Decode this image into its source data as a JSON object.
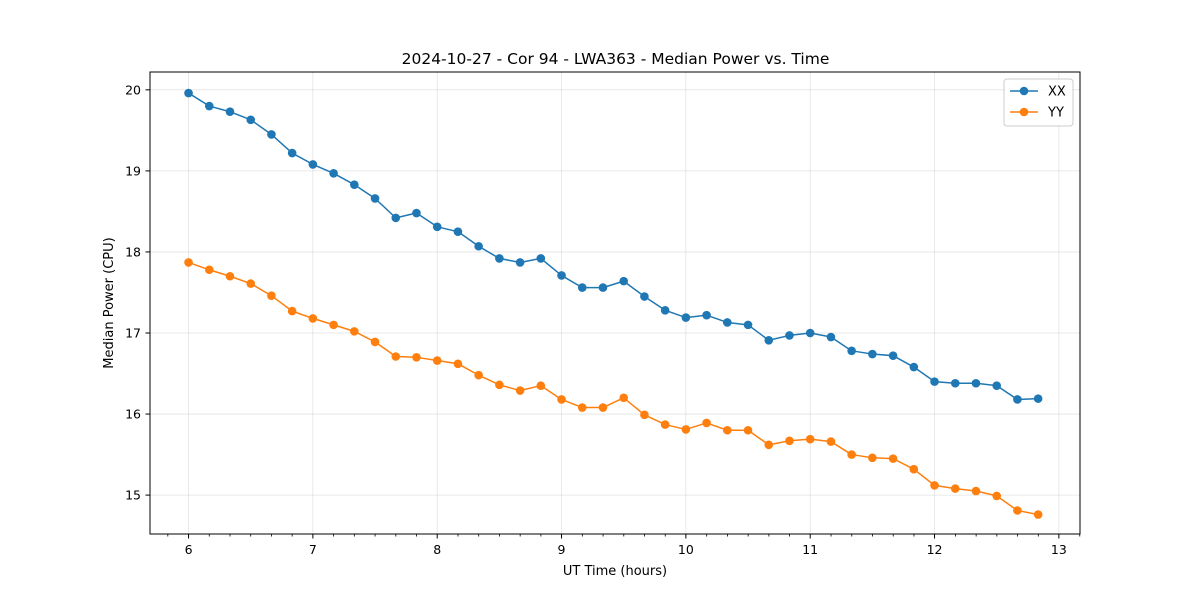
{
  "chart_data": {
    "type": "line",
    "title": "2024-10-27 - Cor 94 - LWA363 - Median Power vs. Time",
    "xlabel": "UT Time (hours)",
    "ylabel": "Median Power (CPU)",
    "xlim": [
      5.69,
      13.17
    ],
    "ylim": [
      14.52,
      20.22
    ],
    "xticks": [
      6,
      7,
      8,
      9,
      10,
      11,
      12,
      13
    ],
    "xtick_labels": [
      "6",
      "7",
      "8",
      "9",
      "10",
      "11",
      "12",
      "13"
    ],
    "xminor_step": 0.1667,
    "yticks": [
      15,
      16,
      17,
      18,
      19,
      20
    ],
    "ytick_labels": [
      "15",
      "16",
      "17",
      "18",
      "19",
      "20"
    ],
    "grid": true,
    "legend_position": "top-right",
    "x": [
      6.0,
      6.1667,
      6.3333,
      6.5,
      6.6667,
      6.8333,
      7.0,
      7.1667,
      7.3333,
      7.5,
      7.6667,
      7.8333,
      8.0,
      8.1667,
      8.3333,
      8.5,
      8.6667,
      8.8333,
      9.0,
      9.1667,
      9.3333,
      9.5,
      9.6667,
      9.8333,
      10.0,
      10.1667,
      10.3333,
      10.5,
      10.6667,
      10.8333,
      11.0,
      11.1667,
      11.3333,
      11.5,
      11.6667,
      11.8333,
      12.0,
      12.1667,
      12.3333,
      12.5,
      12.6667,
      12.8333
    ],
    "series": [
      {
        "name": "XX",
        "color": "#1f77b4",
        "values": [
          19.96,
          19.8,
          19.73,
          19.63,
          19.45,
          19.22,
          19.08,
          18.97,
          18.83,
          18.66,
          18.42,
          18.48,
          18.31,
          18.25,
          18.07,
          17.92,
          17.87,
          17.92,
          17.71,
          17.56,
          17.56,
          17.64,
          17.45,
          17.28,
          17.19,
          17.22,
          17.13,
          17.1,
          16.91,
          16.97,
          17.0,
          16.95,
          16.78,
          16.74,
          16.72,
          16.58,
          16.4,
          16.38,
          16.38,
          16.35,
          16.18,
          16.19
        ]
      },
      {
        "name": "YY",
        "color": "#ff7f0e",
        "values": [
          17.87,
          17.78,
          17.7,
          17.61,
          17.46,
          17.27,
          17.18,
          17.1,
          17.02,
          16.89,
          16.71,
          16.7,
          16.66,
          16.62,
          16.48,
          16.36,
          16.29,
          16.35,
          16.18,
          16.08,
          16.08,
          16.2,
          15.99,
          15.87,
          15.81,
          15.89,
          15.8,
          15.8,
          15.62,
          15.67,
          15.69,
          15.66,
          15.5,
          15.46,
          15.45,
          15.32,
          15.12,
          15.08,
          15.05,
          14.99,
          14.81,
          14.76
        ]
      }
    ]
  }
}
